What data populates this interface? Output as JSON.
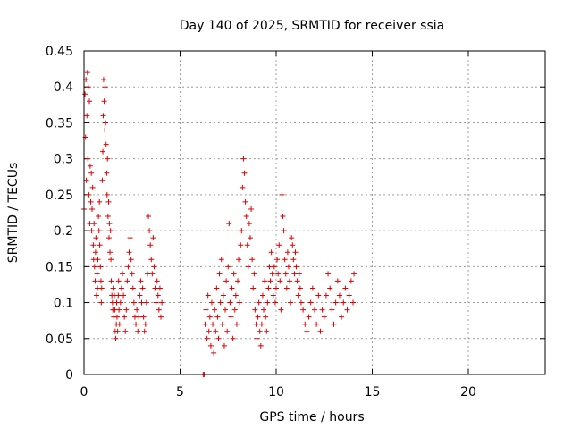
{
  "chart_data": {
    "type": "scatter",
    "title": "Day 140 of 2025, SRMTID for receiver ssia",
    "xlabel": "GPS time / hours",
    "ylabel": "SRMTID / TECUs",
    "xlim": [
      0,
      24
    ],
    "ylim": [
      0,
      0.45
    ],
    "x_ticks": [
      0,
      5,
      10,
      15,
      20
    ],
    "y_ticks": [
      0,
      0.05,
      0.1,
      0.15,
      0.2,
      0.25,
      0.3,
      0.35,
      0.4,
      0.45
    ],
    "x_tick_labels": [
      "0",
      "5",
      "10",
      "15",
      "20"
    ],
    "y_tick_labels": [
      "0",
      "0.05",
      "0.1",
      "0.15",
      "0.2",
      "0.25",
      "0.3",
      "0.35",
      "0.4",
      "0.45"
    ],
    "grid": true,
    "marker": "+",
    "marker_color": "#e00000",
    "series": [
      {
        "name": "SRMTID",
        "points": [
          [
            0.0,
            0.23
          ],
          [
            0.05,
            0.39
          ],
          [
            0.08,
            0.33
          ],
          [
            0.1,
            0.41
          ],
          [
            0.12,
            0.27
          ],
          [
            0.15,
            0.36
          ],
          [
            0.18,
            0.42
          ],
          [
            0.2,
            0.3
          ],
          [
            0.22,
            0.4
          ],
          [
            0.25,
            0.25
          ],
          [
            0.28,
            0.38
          ],
          [
            0.3,
            0.21
          ],
          [
            0.32,
            0.29
          ],
          [
            0.35,
            0.24
          ],
          [
            0.38,
            0.28
          ],
          [
            0.4,
            0.2
          ],
          [
            0.42,
            0.23
          ],
          [
            0.45,
            0.26
          ],
          [
            0.48,
            0.18
          ],
          [
            0.5,
            0.16
          ],
          [
            0.52,
            0.21
          ],
          [
            0.55,
            0.15
          ],
          [
            0.58,
            0.13
          ],
          [
            0.6,
            0.17
          ],
          [
            0.62,
            0.19
          ],
          [
            0.65,
            0.11
          ],
          [
            0.68,
            0.14
          ],
          [
            0.7,
            0.12
          ],
          [
            0.72,
            0.16
          ],
          [
            0.75,
            0.22
          ],
          [
            0.78,
            0.2
          ],
          [
            0.8,
            0.24
          ],
          [
            0.82,
            0.18
          ],
          [
            0.85,
            0.15
          ],
          [
            0.88,
            0.13
          ],
          [
            0.9,
            0.1
          ],
          [
            0.92,
            0.12
          ],
          [
            0.95,
            0.27
          ],
          [
            0.98,
            0.31
          ],
          [
            1.0,
            0.36
          ],
          [
            1.02,
            0.41
          ],
          [
            1.05,
            0.38
          ],
          [
            1.08,
            0.34
          ],
          [
            1.1,
            0.4
          ],
          [
            1.12,
            0.35
          ],
          [
            1.15,
            0.32
          ],
          [
            1.18,
            0.28
          ],
          [
            1.2,
            0.25
          ],
          [
            1.22,
            0.3
          ],
          [
            1.25,
            0.22
          ],
          [
            1.28,
            0.24
          ],
          [
            1.3,
            0.19
          ],
          [
            1.32,
            0.21
          ],
          [
            1.35,
            0.17
          ],
          [
            1.38,
            0.2
          ],
          [
            1.4,
            0.16
          ],
          [
            1.42,
            0.13
          ],
          [
            1.45,
            0.11
          ],
          [
            1.48,
            0.1
          ],
          [
            1.5,
            0.09
          ],
          [
            1.52,
            0.12
          ],
          [
            1.55,
            0.08
          ],
          [
            1.58,
            0.11
          ],
          [
            1.6,
            0.09
          ],
          [
            1.62,
            0.06
          ],
          [
            1.65,
            0.05
          ],
          [
            1.68,
            0.07
          ],
          [
            1.7,
            0.1
          ],
          [
            1.72,
            0.08
          ],
          [
            1.75,
            0.06
          ],
          [
            1.78,
            0.11
          ],
          [
            1.8,
            0.13
          ],
          [
            1.82,
            0.09
          ],
          [
            1.85,
            0.07
          ],
          [
            1.9,
            0.1
          ],
          [
            1.95,
            0.12
          ],
          [
            2.0,
            0.14
          ],
          [
            2.05,
            0.11
          ],
          [
            2.1,
            0.08
          ],
          [
            2.15,
            0.06
          ],
          [
            2.2,
            0.09
          ],
          [
            2.25,
            0.13
          ],
          [
            2.3,
            0.15
          ],
          [
            2.35,
            0.17
          ],
          [
            2.4,
            0.19
          ],
          [
            2.45,
            0.16
          ],
          [
            2.5,
            0.14
          ],
          [
            2.55,
            0.12
          ],
          [
            2.6,
            0.1
          ],
          [
            2.65,
            0.08
          ],
          [
            2.7,
            0.07
          ],
          [
            2.75,
            0.09
          ],
          [
            2.8,
            0.06
          ],
          [
            2.85,
            0.08
          ],
          [
            2.9,
            0.11
          ],
          [
            2.95,
            0.13
          ],
          [
            3.0,
            0.1
          ],
          [
            3.05,
            0.12
          ],
          [
            3.1,
            0.08
          ],
          [
            3.15,
            0.06
          ],
          [
            3.2,
            0.07
          ],
          [
            3.25,
            0.1
          ],
          [
            3.3,
            0.14
          ],
          [
            3.35,
            0.22
          ],
          [
            3.4,
            0.2
          ],
          [
            3.45,
            0.18
          ],
          [
            3.5,
            0.16
          ],
          [
            3.55,
            0.14
          ],
          [
            3.6,
            0.19
          ],
          [
            3.65,
            0.15
          ],
          [
            3.7,
            0.12
          ],
          [
            3.75,
            0.1
          ],
          [
            3.8,
            0.13
          ],
          [
            3.85,
            0.11
          ],
          [
            3.9,
            0.09
          ],
          [
            3.95,
            0.12
          ],
          [
            4.0,
            0.08
          ],
          [
            4.05,
            0.1
          ],
          [
            6.2,
            0.0
          ],
          [
            6.25,
            0.0
          ],
          [
            6.3,
            0.07
          ],
          [
            6.35,
            0.09
          ],
          [
            6.4,
            0.05
          ],
          [
            6.45,
            0.11
          ],
          [
            6.5,
            0.06
          ],
          [
            6.55,
            0.08
          ],
          [
            6.6,
            0.04
          ],
          [
            6.65,
            0.1
          ],
          [
            6.7,
            0.07
          ],
          [
            6.75,
            0.03
          ],
          [
            6.8,
            0.09
          ],
          [
            6.85,
            0.06
          ],
          [
            6.9,
            0.12
          ],
          [
            6.95,
            0.08
          ],
          [
            7.0,
            0.05
          ],
          [
            7.05,
            0.14
          ],
          [
            7.1,
            0.1
          ],
          [
            7.15,
            0.16
          ],
          [
            7.2,
            0.07
          ],
          [
            7.25,
            0.11
          ],
          [
            7.3,
            0.04
          ],
          [
            7.35,
            0.09
          ],
          [
            7.4,
            0.13
          ],
          [
            7.45,
            0.06
          ],
          [
            7.5,
            0.15
          ],
          [
            7.55,
            0.21
          ],
          [
            7.6,
            0.1
          ],
          [
            7.65,
            0.08
          ],
          [
            7.7,
            0.12
          ],
          [
            7.75,
            0.05
          ],
          [
            7.8,
            0.14
          ],
          [
            7.85,
            0.09
          ],
          [
            7.9,
            0.11
          ],
          [
            7.95,
            0.07
          ],
          [
            8.0,
            0.13
          ],
          [
            8.05,
            0.16
          ],
          [
            8.1,
            0.1
          ],
          [
            8.15,
            0.18
          ],
          [
            8.2,
            0.2
          ],
          [
            8.25,
            0.26
          ],
          [
            8.3,
            0.3
          ],
          [
            8.35,
            0.28
          ],
          [
            8.4,
            0.24
          ],
          [
            8.45,
            0.22
          ],
          [
            8.5,
            0.18
          ],
          [
            8.55,
            0.15
          ],
          [
            8.6,
            0.21
          ],
          [
            8.65,
            0.19
          ],
          [
            8.7,
            0.23
          ],
          [
            8.75,
            0.16
          ],
          [
            8.8,
            0.12
          ],
          [
            8.85,
            0.14
          ],
          [
            8.9,
            0.09
          ],
          [
            8.95,
            0.07
          ],
          [
            9.0,
            0.05
          ],
          [
            9.05,
            0.08
          ],
          [
            9.1,
            0.1
          ],
          [
            9.15,
            0.06
          ],
          [
            9.2,
            0.04
          ],
          [
            9.25,
            0.07
          ],
          [
            9.3,
            0.11
          ],
          [
            9.35,
            0.09
          ],
          [
            9.4,
            0.13
          ],
          [
            9.45,
            0.08
          ],
          [
            9.5,
            0.06
          ],
          [
            9.55,
            0.1
          ],
          [
            9.6,
            0.12
          ],
          [
            9.65,
            0.15
          ],
          [
            9.7,
            0.13
          ],
          [
            9.75,
            0.17
          ],
          [
            9.8,
            0.14
          ],
          [
            9.85,
            0.11
          ],
          [
            9.9,
            0.15
          ],
          [
            9.95,
            0.1
          ],
          [
            10.0,
            0.12
          ],
          [
            10.05,
            0.16
          ],
          [
            10.1,
            0.14
          ],
          [
            10.15,
            0.18
          ],
          [
            10.2,
            0.13
          ],
          [
            10.25,
            0.09
          ],
          [
            10.3,
            0.25
          ],
          [
            10.35,
            0.22
          ],
          [
            10.4,
            0.2
          ],
          [
            10.45,
            0.16
          ],
          [
            10.5,
            0.14
          ],
          [
            10.55,
            0.12
          ],
          [
            10.6,
            0.17
          ],
          [
            10.65,
            0.15
          ],
          [
            10.7,
            0.13
          ],
          [
            10.75,
            0.1
          ],
          [
            10.8,
            0.19
          ],
          [
            10.85,
            0.18
          ],
          [
            10.9,
            0.16
          ],
          [
            10.95,
            0.14
          ],
          [
            11.0,
            0.17
          ],
          [
            11.05,
            0.15
          ],
          [
            11.1,
            0.13
          ],
          [
            11.15,
            0.11
          ],
          [
            11.2,
            0.14
          ],
          [
            11.25,
            0.12
          ],
          [
            11.3,
            0.1
          ],
          [
            11.4,
            0.09
          ],
          [
            11.5,
            0.07
          ],
          [
            11.6,
            0.06
          ],
          [
            11.7,
            0.08
          ],
          [
            11.8,
            0.1
          ],
          [
            11.9,
            0.12
          ],
          [
            12.0,
            0.09
          ],
          [
            12.1,
            0.07
          ],
          [
            12.2,
            0.11
          ],
          [
            12.3,
            0.06
          ],
          [
            12.4,
            0.09
          ],
          [
            12.5,
            0.08
          ],
          [
            12.6,
            0.11
          ],
          [
            12.7,
            0.14
          ],
          [
            12.8,
            0.12
          ],
          [
            12.9,
            0.09
          ],
          [
            13.0,
            0.07
          ],
          [
            13.1,
            0.1
          ],
          [
            13.2,
            0.13
          ],
          [
            13.3,
            0.11
          ],
          [
            13.4,
            0.08
          ],
          [
            13.5,
            0.1
          ],
          [
            13.6,
            0.12
          ],
          [
            13.7,
            0.09
          ],
          [
            13.8,
            0.11
          ],
          [
            13.9,
            0.13
          ],
          [
            14.0,
            0.1
          ],
          [
            14.05,
            0.14
          ]
        ]
      }
    ]
  }
}
